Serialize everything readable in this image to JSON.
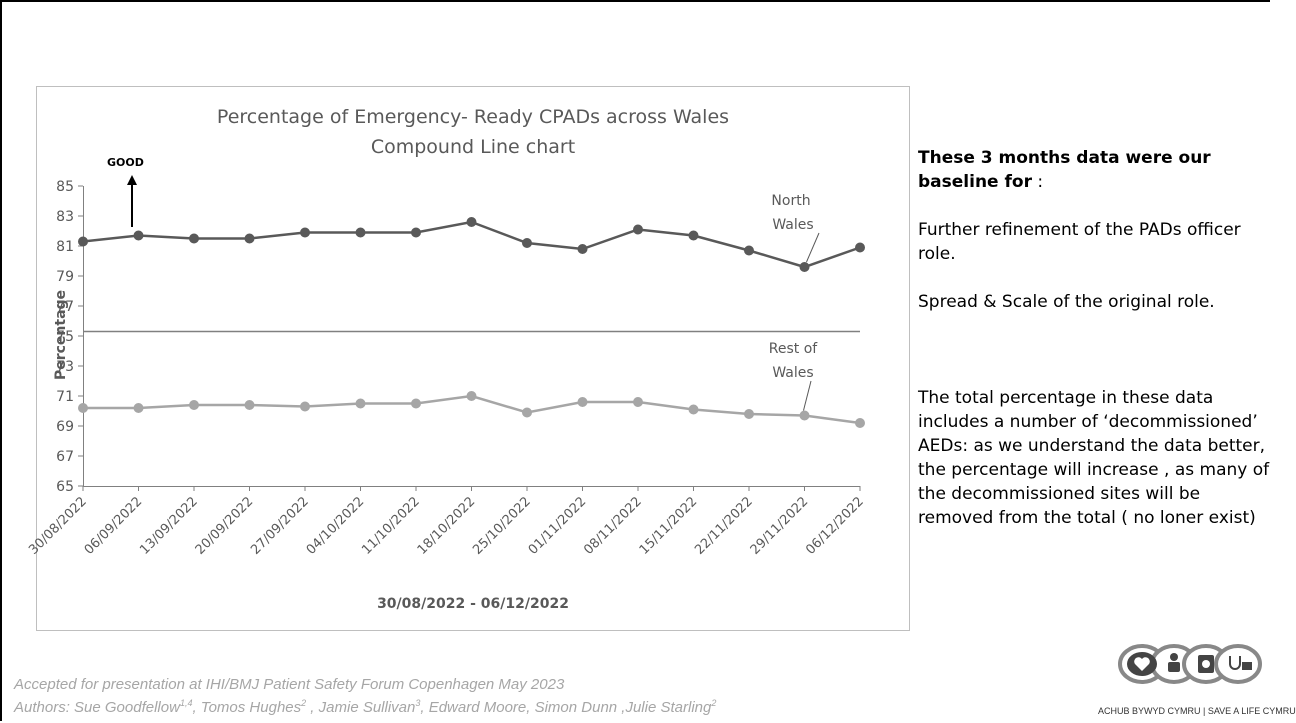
{
  "chart_data": {
    "type": "line",
    "title": "Percentage of Emergency- Ready CPADs across Wales",
    "subtitle": "Compound Line chart",
    "xlabel": "30/08/2022 - 06/12/2022",
    "ylabel": "Percentage",
    "ylim": [
      65,
      85
    ],
    "yticks": [
      "85",
      "83",
      "81",
      "79",
      "77",
      "75",
      "73",
      "71",
      "69",
      "67",
      "65"
    ],
    "categories": [
      "30/08/2022",
      "06/09/2022",
      "13/09/2022",
      "20/09/2022",
      "27/09/2022",
      "04/10/2022",
      "11/10/2022",
      "18/10/2022",
      "25/10/2022",
      "01/11/2022",
      "08/11/2022",
      "15/11/2022",
      "22/11/2022",
      "29/11/2022",
      "06/12/2022"
    ],
    "series": [
      {
        "name": "North Wales",
        "values": [
          81.3,
          81.7,
          81.5,
          81.5,
          81.9,
          81.9,
          81.9,
          82.6,
          81.2,
          80.8,
          82.1,
          81.7,
          80.7,
          79.6,
          80.9
        ],
        "color": "#595959"
      },
      {
        "name": "Rest of Wales",
        "values": [
          70.2,
          70.2,
          70.4,
          70.4,
          70.3,
          70.5,
          70.5,
          71.0,
          69.9,
          70.6,
          70.6,
          70.1,
          69.8,
          69.7,
          69.2
        ],
        "color": "#a6a6a6"
      }
    ],
    "divider_value": 75.3,
    "annotation_good": "GOOD",
    "label_north": [
      "North",
      "Wales"
    ],
    "label_rest": [
      "Rest of",
      "Wales"
    ],
    "grid": false
  },
  "side": {
    "heading_bold": "These 3 months data were our baseline for",
    "heading_colon": " :",
    "p1": "Further refinement of  the  PADs officer role.",
    "p2": "Spread & Scale of the original role.",
    "p3": "The total percentage in these data includes a number of ‘decommissioned’ AEDs: as we understand the data better, the percentage will increase , as many of the decommissioned sites will be removed from the total ( no loner exist)"
  },
  "footer": {
    "line1": "Accepted for presentation at IHI/BMJ  Patient Safety Forum Copenhagen May 2023",
    "line2": "Authors: Sue Goodfellow1,4, Tomos Hughes2 , Jamie Sullivan3,  Edward Moore, Simon Dunn ,Julie Starling2"
  },
  "logo": {
    "text": "ACHUB BYWYD CYMRU | SAVE A LIFE CYMRU",
    "icons": [
      "heart-icon",
      "person-icon",
      "defibrillator-icon",
      "stethoscope-icon"
    ]
  }
}
